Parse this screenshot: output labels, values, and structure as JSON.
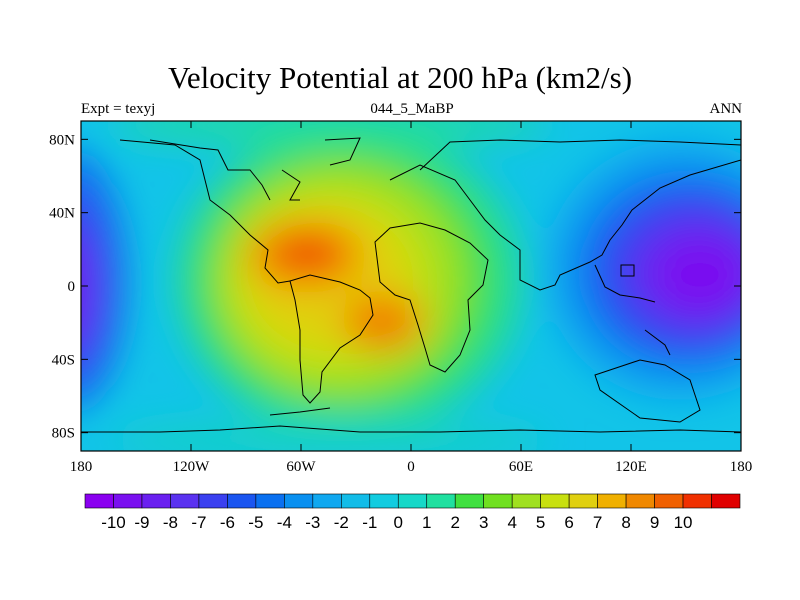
{
  "title": "Velocity Potential at 200 hPa (km2/s)",
  "subtitle_left": "Expt = texyj",
  "subtitle_center": "044_5_MaBP",
  "subtitle_right": "ANN",
  "x_tick_labels": [
    "180",
    "120W",
    "60W",
    "0",
    "60E",
    "120E",
    "180"
  ],
  "y_tick_labels": [
    "80N",
    "40N",
    "0",
    "40S",
    "80S"
  ],
  "colorbar": {
    "labels": [
      "-10",
      "-9",
      "-8",
      "-7",
      "-6",
      "-5",
      "-4",
      "-3",
      "-2",
      "-1",
      "0",
      "1",
      "2",
      "3",
      "4",
      "5",
      "6",
      "7",
      "8",
      "9",
      "10"
    ],
    "colors": [
      "#8a00f0",
      "#7a10f0",
      "#6a20f0",
      "#5a32f0",
      "#3a40f0",
      "#1a55f0",
      "#0a70f0",
      "#0a90f0",
      "#10a8f0",
      "#12bce8",
      "#12cce0",
      "#16d8c8",
      "#20e0a0",
      "#40e040",
      "#70e020",
      "#a0e020",
      "#c8e010",
      "#e0d010",
      "#f0b000",
      "#f08800",
      "#f06000",
      "#f03000",
      "#e00000"
    ]
  },
  "chart_data": {
    "type": "heatmap",
    "title": "Velocity Potential at 200 hPa (km2/s)",
    "subtitle": "044_5_MaBP",
    "xlabel": "",
    "ylabel": "",
    "xlim": [
      -180,
      180
    ],
    "ylim": [
      -90,
      90
    ],
    "x_ticks": [
      -180,
      -120,
      -60,
      0,
      60,
      120,
      180
    ],
    "y_ticks": [
      80,
      40,
      0,
      -40,
      -80
    ],
    "colorbar_range": [
      -10,
      10
    ],
    "field_features": [
      {
        "lon": -52,
        "lat": 15,
        "value": 10,
        "kind": "max"
      },
      {
        "lon": -25,
        "lat": -20,
        "value": 9,
        "kind": "max"
      },
      {
        "lon": 155,
        "lat": 8,
        "value": -10,
        "kind": "min"
      },
      {
        "lon": -178,
        "lat": 0,
        "value": -9,
        "kind": "min"
      }
    ]
  }
}
